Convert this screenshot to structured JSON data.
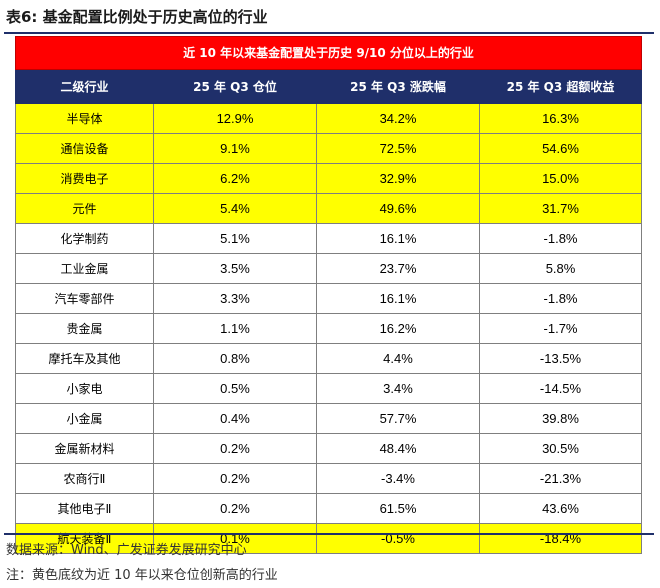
{
  "title": "表6:  基金配置比例处于历史高位的行业",
  "table": {
    "banner": "近 10 年以来基金配置处于历史 9/10 分位以上的行业",
    "headers": [
      "二级行业",
      "25 年 Q3 仓位",
      "25 年 Q3 涨跌幅",
      "25 年 Q3 超额收益"
    ],
    "rows": [
      {
        "industry": "半导体",
        "position": "12.9%",
        "change": "34.2%",
        "excess": "16.3%",
        "highlight": true
      },
      {
        "industry": "通信设备",
        "position": "9.1%",
        "change": "72.5%",
        "excess": "54.6%",
        "highlight": true
      },
      {
        "industry": "消费电子",
        "position": "6.2%",
        "change": "32.9%",
        "excess": "15.0%",
        "highlight": true
      },
      {
        "industry": "元件",
        "position": "5.4%",
        "change": "49.6%",
        "excess": "31.7%",
        "highlight": true
      },
      {
        "industry": "化学制药",
        "position": "5.1%",
        "change": "16.1%",
        "excess": "-1.8%",
        "highlight": false
      },
      {
        "industry": "工业金属",
        "position": "3.5%",
        "change": "23.7%",
        "excess": "5.8%",
        "highlight": false
      },
      {
        "industry": "汽车零部件",
        "position": "3.3%",
        "change": "16.1%",
        "excess": "-1.8%",
        "highlight": false
      },
      {
        "industry": "贵金属",
        "position": "1.1%",
        "change": "16.2%",
        "excess": "-1.7%",
        "highlight": false
      },
      {
        "industry": "摩托车及其他",
        "position": "0.8%",
        "change": "4.4%",
        "excess": "-13.5%",
        "highlight": false
      },
      {
        "industry": "小家电",
        "position": "0.5%",
        "change": "3.4%",
        "excess": "-14.5%",
        "highlight": false
      },
      {
        "industry": "小金属",
        "position": "0.4%",
        "change": "57.7%",
        "excess": "39.8%",
        "highlight": false
      },
      {
        "industry": "金属新材料",
        "position": "0.2%",
        "change": "48.4%",
        "excess": "30.5%",
        "highlight": false
      },
      {
        "industry": "农商行Ⅱ",
        "position": "0.2%",
        "change": "-3.4%",
        "excess": "-21.3%",
        "highlight": false
      },
      {
        "industry": "其他电子Ⅱ",
        "position": "0.2%",
        "change": "61.5%",
        "excess": "43.6%",
        "highlight": false
      },
      {
        "industry": "航天装备Ⅱ",
        "position": "0.1%",
        "change": "-0.5%",
        "excess": "-18.4%",
        "highlight": true
      }
    ]
  },
  "notes": {
    "source": "数据来源：Wind、广发证券发展研究中心",
    "note": "注：黄色底纹为近 10 年以来仓位创新高的行业"
  },
  "colors": {
    "banner_bg": "#ff0000",
    "header_bg": "#1f2f6a",
    "highlight_bg": "#ffff00"
  }
}
